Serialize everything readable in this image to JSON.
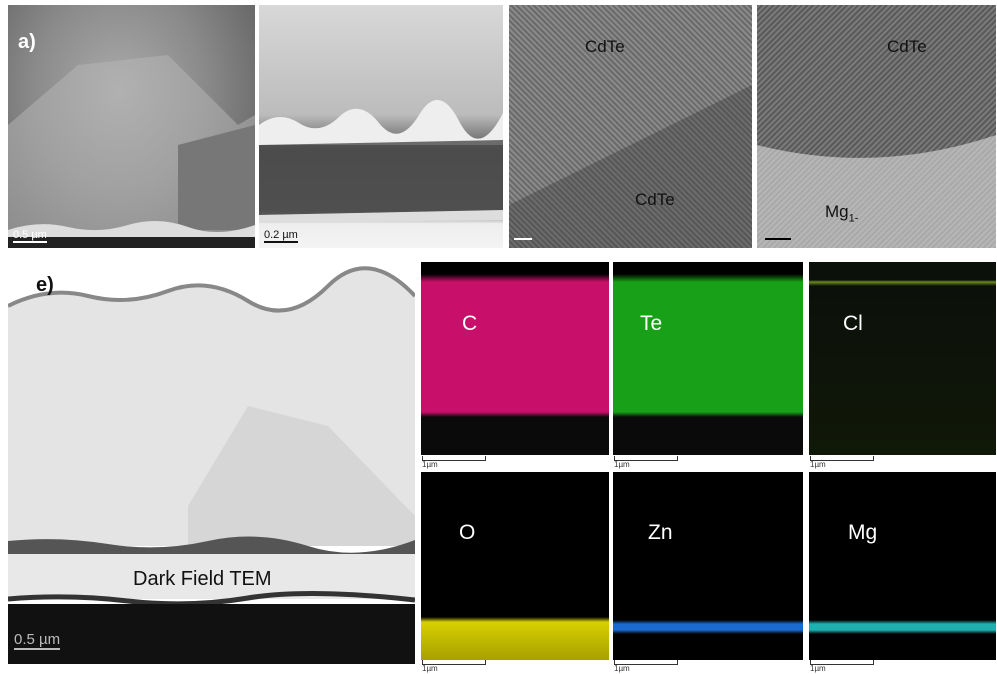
{
  "top_panels": {
    "label": "a)",
    "scale_bar_1": "0.5 µm",
    "scale_bar_2": "0.2 µm",
    "panel_c": {
      "label_top": "CdTe",
      "label_bottom": "CdTe"
    },
    "panel_d": {
      "label_top": "CdTe",
      "label_bottom": {
        "text": "Mg",
        "subscript": "1-"
      }
    }
  },
  "bottom_left": {
    "label": "e)",
    "caption": "Dark Field TEM",
    "scale_bar": "0.5 µm"
  },
  "maps": [
    {
      "element": "C",
      "scale_bar": "1µm"
    },
    {
      "element": "Te",
      "scale_bar": "1µm"
    },
    {
      "element": "Cl",
      "scale_bar": "1µm"
    },
    {
      "element": "O",
      "scale_bar": "1µm"
    },
    {
      "element": "Zn",
      "scale_bar": "1µm"
    },
    {
      "element": "Mg",
      "scale_bar": "1µm"
    }
  ]
}
